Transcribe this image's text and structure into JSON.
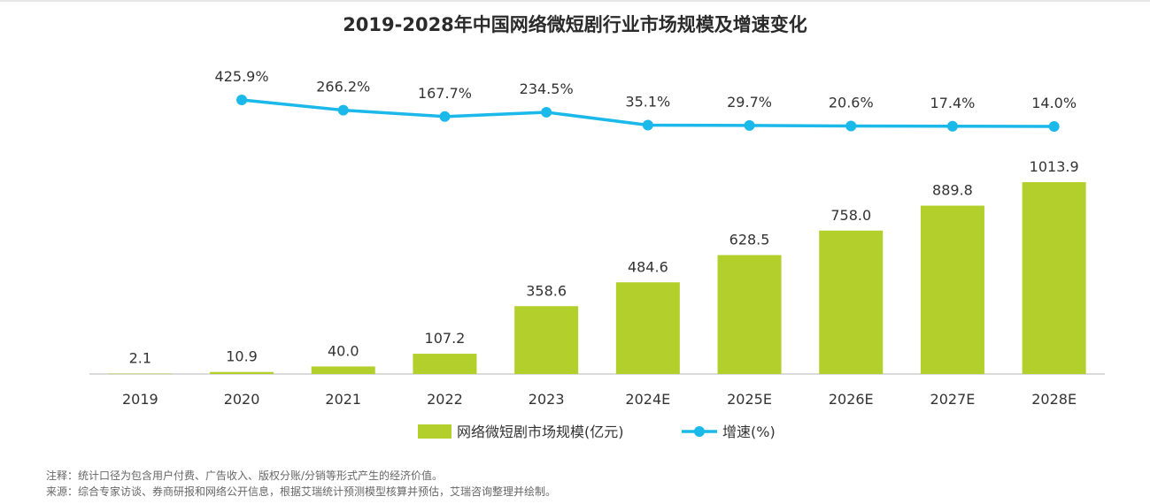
{
  "title": "2019-2028年中国网络微短剧行业市场规模及增速变化",
  "colors": {
    "bar": "#b3cf2b",
    "line": "#1bb8ea",
    "axis": "#cfcfcf"
  },
  "chart_data": {
    "type": "bar+line",
    "categories": [
      "2019",
      "2020",
      "2021",
      "2022",
      "2023",
      "2024E",
      "2025E",
      "2026E",
      "2027E",
      "2028E"
    ],
    "series": [
      {
        "name": "网络微短剧市场规模(亿元)",
        "type": "bar",
        "values": [
          2.1,
          10.9,
          40.0,
          107.2,
          358.6,
          484.6,
          628.5,
          758.0,
          889.8,
          1013.9
        ],
        "labels": [
          "2.1",
          "10.9",
          "40.0",
          "107.2",
          "358.6",
          "484.6",
          "628.5",
          "758.0",
          "889.8",
          "1013.9"
        ]
      },
      {
        "name": "增速(%)",
        "type": "line",
        "x": [
          "2020",
          "2021",
          "2022",
          "2023",
          "2024E",
          "2025E",
          "2026E",
          "2027E",
          "2028E"
        ],
        "values": [
          425.9,
          266.2,
          167.7,
          234.5,
          35.1,
          29.7,
          20.6,
          17.4,
          14.0
        ],
        "labels": [
          "425.9%",
          "266.2%",
          "167.7%",
          "234.5%",
          "35.1%",
          "29.7%",
          "20.6%",
          "17.4%",
          "14.0%"
        ]
      }
    ],
    "legend_position": "bottom-center"
  },
  "notes": {
    "note": "注释：统计口径为包含用户付费、广告收入、版权分账/分销等形式产生的经济价值。",
    "source": "来源：综合专家访谈、券商研报和网络公开信息，根据艾瑞统计预测模型核算并预估，艾瑞咨询整理并绘制。"
  }
}
